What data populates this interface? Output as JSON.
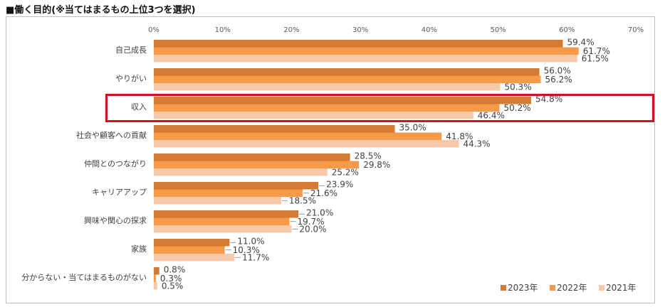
{
  "title": "■働く目的(※当てはまるもの上位3つを選択)",
  "chart_data": {
    "type": "bar",
    "orientation": "horizontal",
    "categories": [
      "自己成長",
      "やりがい",
      "収入",
      "社会や顧客への貢献",
      "仲間とのつながり",
      "キャリアアップ",
      "興味や関心の探求",
      "家族",
      "分からない・当てはまるものがない"
    ],
    "series": [
      {
        "name": "2023年",
        "color": "#d27b35",
        "values": [
          59.4,
          56.0,
          54.8,
          35.0,
          28.5,
          23.9,
          21.0,
          11.0,
          0.8
        ]
      },
      {
        "name": "2022年",
        "color": "#f59a48",
        "values": [
          61.7,
          56.2,
          50.2,
          41.8,
          29.8,
          21.6,
          19.7,
          10.3,
          0.3
        ]
      },
      {
        "name": "2021年",
        "color": "#f8c9a8",
        "values": [
          61.5,
          50.3,
          46.4,
          44.3,
          25.2,
          18.5,
          20.0,
          11.7,
          0.5
        ]
      }
    ],
    "xticks": [
      "0%",
      "10%",
      "20%",
      "30%",
      "40%",
      "50%",
      "60%",
      "70%"
    ],
    "xlim": [
      0,
      70
    ],
    "value_suffix": "%",
    "legend_position": "bottom-right",
    "highlight_category": "収入",
    "grid": false
  }
}
